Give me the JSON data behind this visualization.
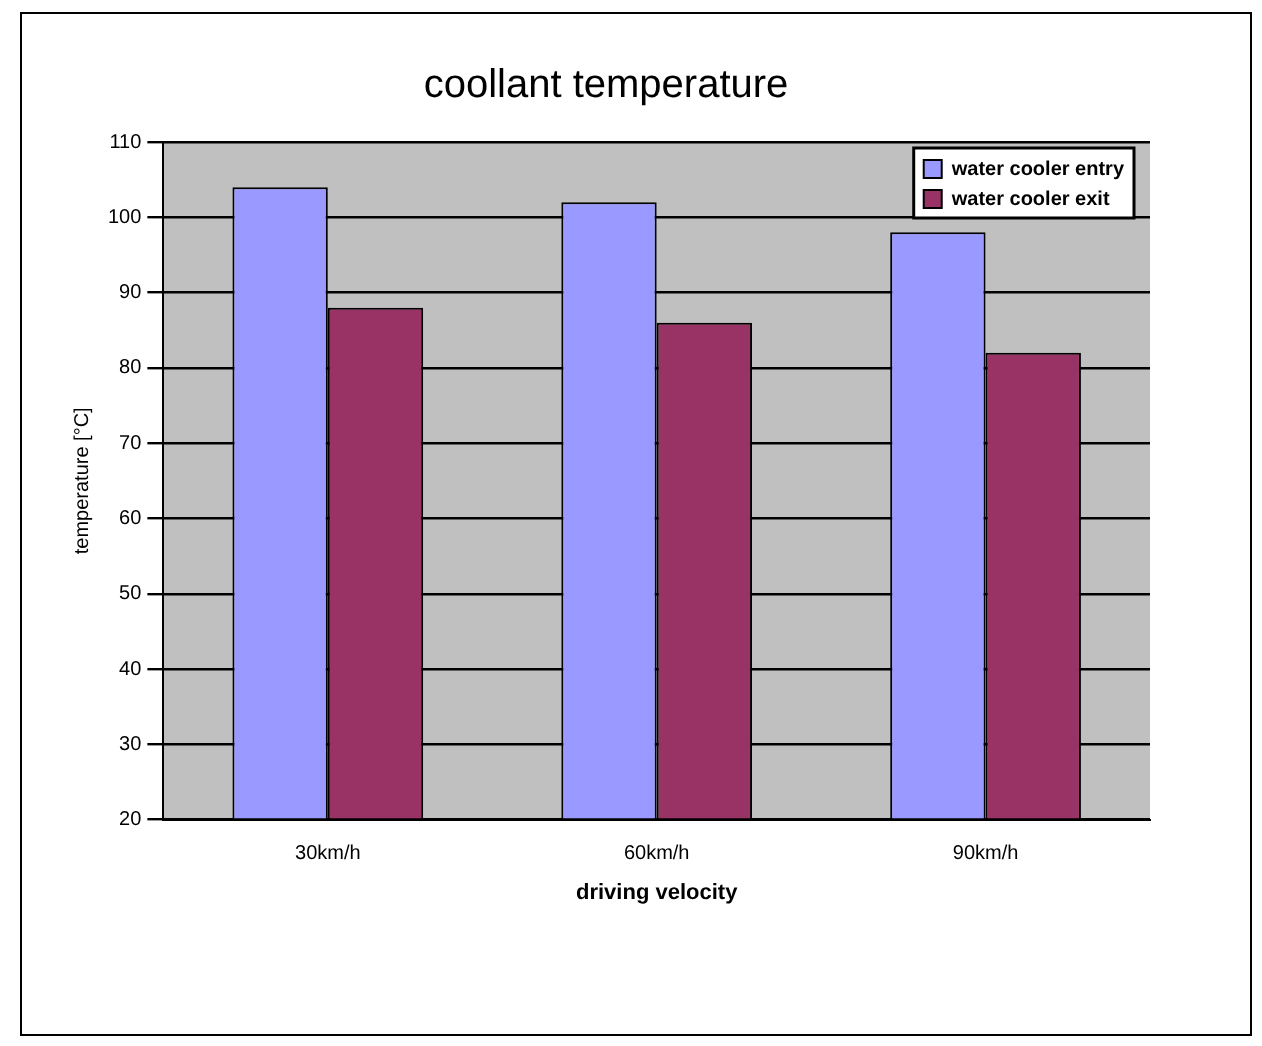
{
  "chart_data": {
    "type": "bar",
    "title": "coollant temperature",
    "xlabel": "driving velocity",
    "ylabel": "temperature [°C]",
    "categories": [
      "30km/h",
      "60km/h",
      "90km/h"
    ],
    "series": [
      {
        "name": "water cooler entry",
        "color": "#9999ff",
        "values": [
          104,
          102,
          98
        ]
      },
      {
        "name": "water cooler exit",
        "color": "#993366",
        "values": [
          88,
          86,
          82
        ]
      }
    ],
    "ylim": [
      20,
      110
    ],
    "yticks": [
      20,
      30,
      40,
      50,
      60,
      70,
      80,
      90,
      100,
      110
    ],
    "grid": "y",
    "legend": "top right"
  }
}
